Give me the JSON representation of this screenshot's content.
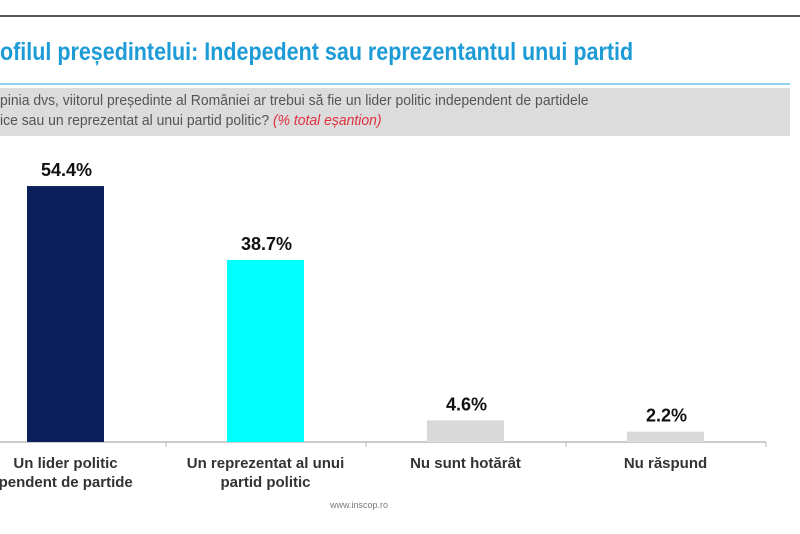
{
  "header": {
    "title": "ofilul președintelui: Indepedent sau reprezentantul unui partid",
    "question_line1": "pinia dvs, viitorul președinte al României ar trebui să fie un lider politic independent de partidele",
    "question_line2": "ice sau un reprezentat al unui partid politic?",
    "question_note": "(% total eșantion)"
  },
  "source": "www.inscop.ro",
  "chart_data": {
    "type": "bar",
    "categories": [
      [
        "Un lider politic",
        "ependent de partide"
      ],
      [
        "Un reprezentat al unui",
        "partid politic"
      ],
      [
        "Nu sunt hotărât"
      ],
      [
        "Nu răspund"
      ]
    ],
    "values": [
      54.4,
      38.7,
      4.6,
      2.2
    ],
    "value_labels": [
      "54.4%",
      "38.7%",
      "4.6%",
      "2.2%"
    ],
    "colors": [
      "#0a1f5c",
      "#00ffff",
      "#d9d9d9",
      "#d9d9d9"
    ],
    "ylim": [
      0,
      60
    ],
    "grid": false
  }
}
